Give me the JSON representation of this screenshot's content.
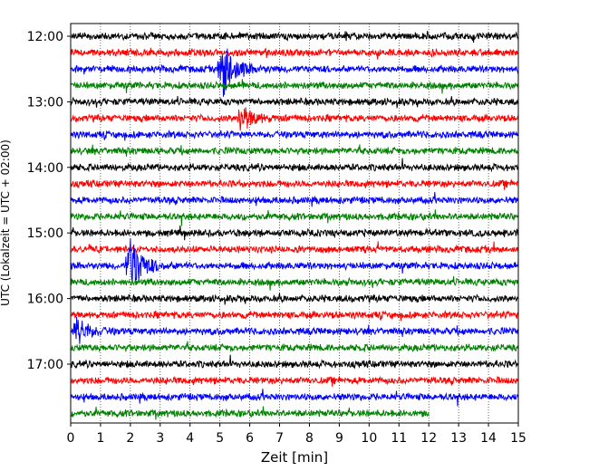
{
  "chart_data": {
    "type": "line",
    "title": "",
    "xlabel": "Zeit  [min]",
    "ylabel": "UTC (Lokalzeit = UTC + 02:00)",
    "xlim": [
      0,
      15
    ],
    "xticks": [
      0,
      1,
      2,
      3,
      4,
      5,
      6,
      7,
      8,
      9,
      10,
      11,
      12,
      13,
      14,
      15
    ],
    "xtick_labels": [
      "0",
      "1",
      "2",
      "3",
      "4",
      "5",
      "6",
      "7",
      "8",
      "9",
      "10",
      "11",
      "12",
      "13",
      "14",
      "15"
    ],
    "yticks": [
      "12:00",
      "13:00",
      "14:00",
      "15:00",
      "16:00",
      "17:00"
    ],
    "grid": "vertical dotted lines at each minute",
    "trace_interval_minutes": 15,
    "trace_colors": [
      "#000000",
      "#ff0000",
      "#0000ff",
      "#008000"
    ],
    "traces": [
      {
        "start": "12:00",
        "end_minute": 15
      },
      {
        "start": "12:15",
        "end_minute": 15
      },
      {
        "start": "12:30",
        "end_minute": 15
      },
      {
        "start": "12:45",
        "end_minute": 15
      },
      {
        "start": "13:00",
        "end_minute": 15
      },
      {
        "start": "13:15",
        "end_minute": 15
      },
      {
        "start": "13:30",
        "end_minute": 15
      },
      {
        "start": "13:45",
        "end_minute": 15
      },
      {
        "start": "14:00",
        "end_minute": 15
      },
      {
        "start": "14:15",
        "end_minute": 15
      },
      {
        "start": "14:30",
        "end_minute": 15
      },
      {
        "start": "14:45",
        "end_minute": 15
      },
      {
        "start": "15:00",
        "end_minute": 15
      },
      {
        "start": "15:15",
        "end_minute": 15
      },
      {
        "start": "15:30",
        "end_minute": 15
      },
      {
        "start": "15:45",
        "end_minute": 15
      },
      {
        "start": "16:00",
        "end_minute": 15
      },
      {
        "start": "16:15",
        "end_minute": 15
      },
      {
        "start": "16:30",
        "end_minute": 15
      },
      {
        "start": "16:45",
        "end_minute": 15
      },
      {
        "start": "17:00",
        "end_minute": 15
      },
      {
        "start": "17:15",
        "end_minute": 15
      },
      {
        "start": "17:30",
        "end_minute": 15
      },
      {
        "start": "17:45",
        "end_minute": 12
      }
    ],
    "events": [
      {
        "trace": "12:30",
        "minute": 5.1,
        "amplitude": "large"
      },
      {
        "trace": "13:15",
        "minute": 5.7,
        "amplitude": "medium"
      },
      {
        "trace": "15:30",
        "minute": 2.0,
        "amplitude": "large"
      },
      {
        "trace": "16:30",
        "minute": 0.2,
        "amplitude": "medium"
      }
    ]
  }
}
